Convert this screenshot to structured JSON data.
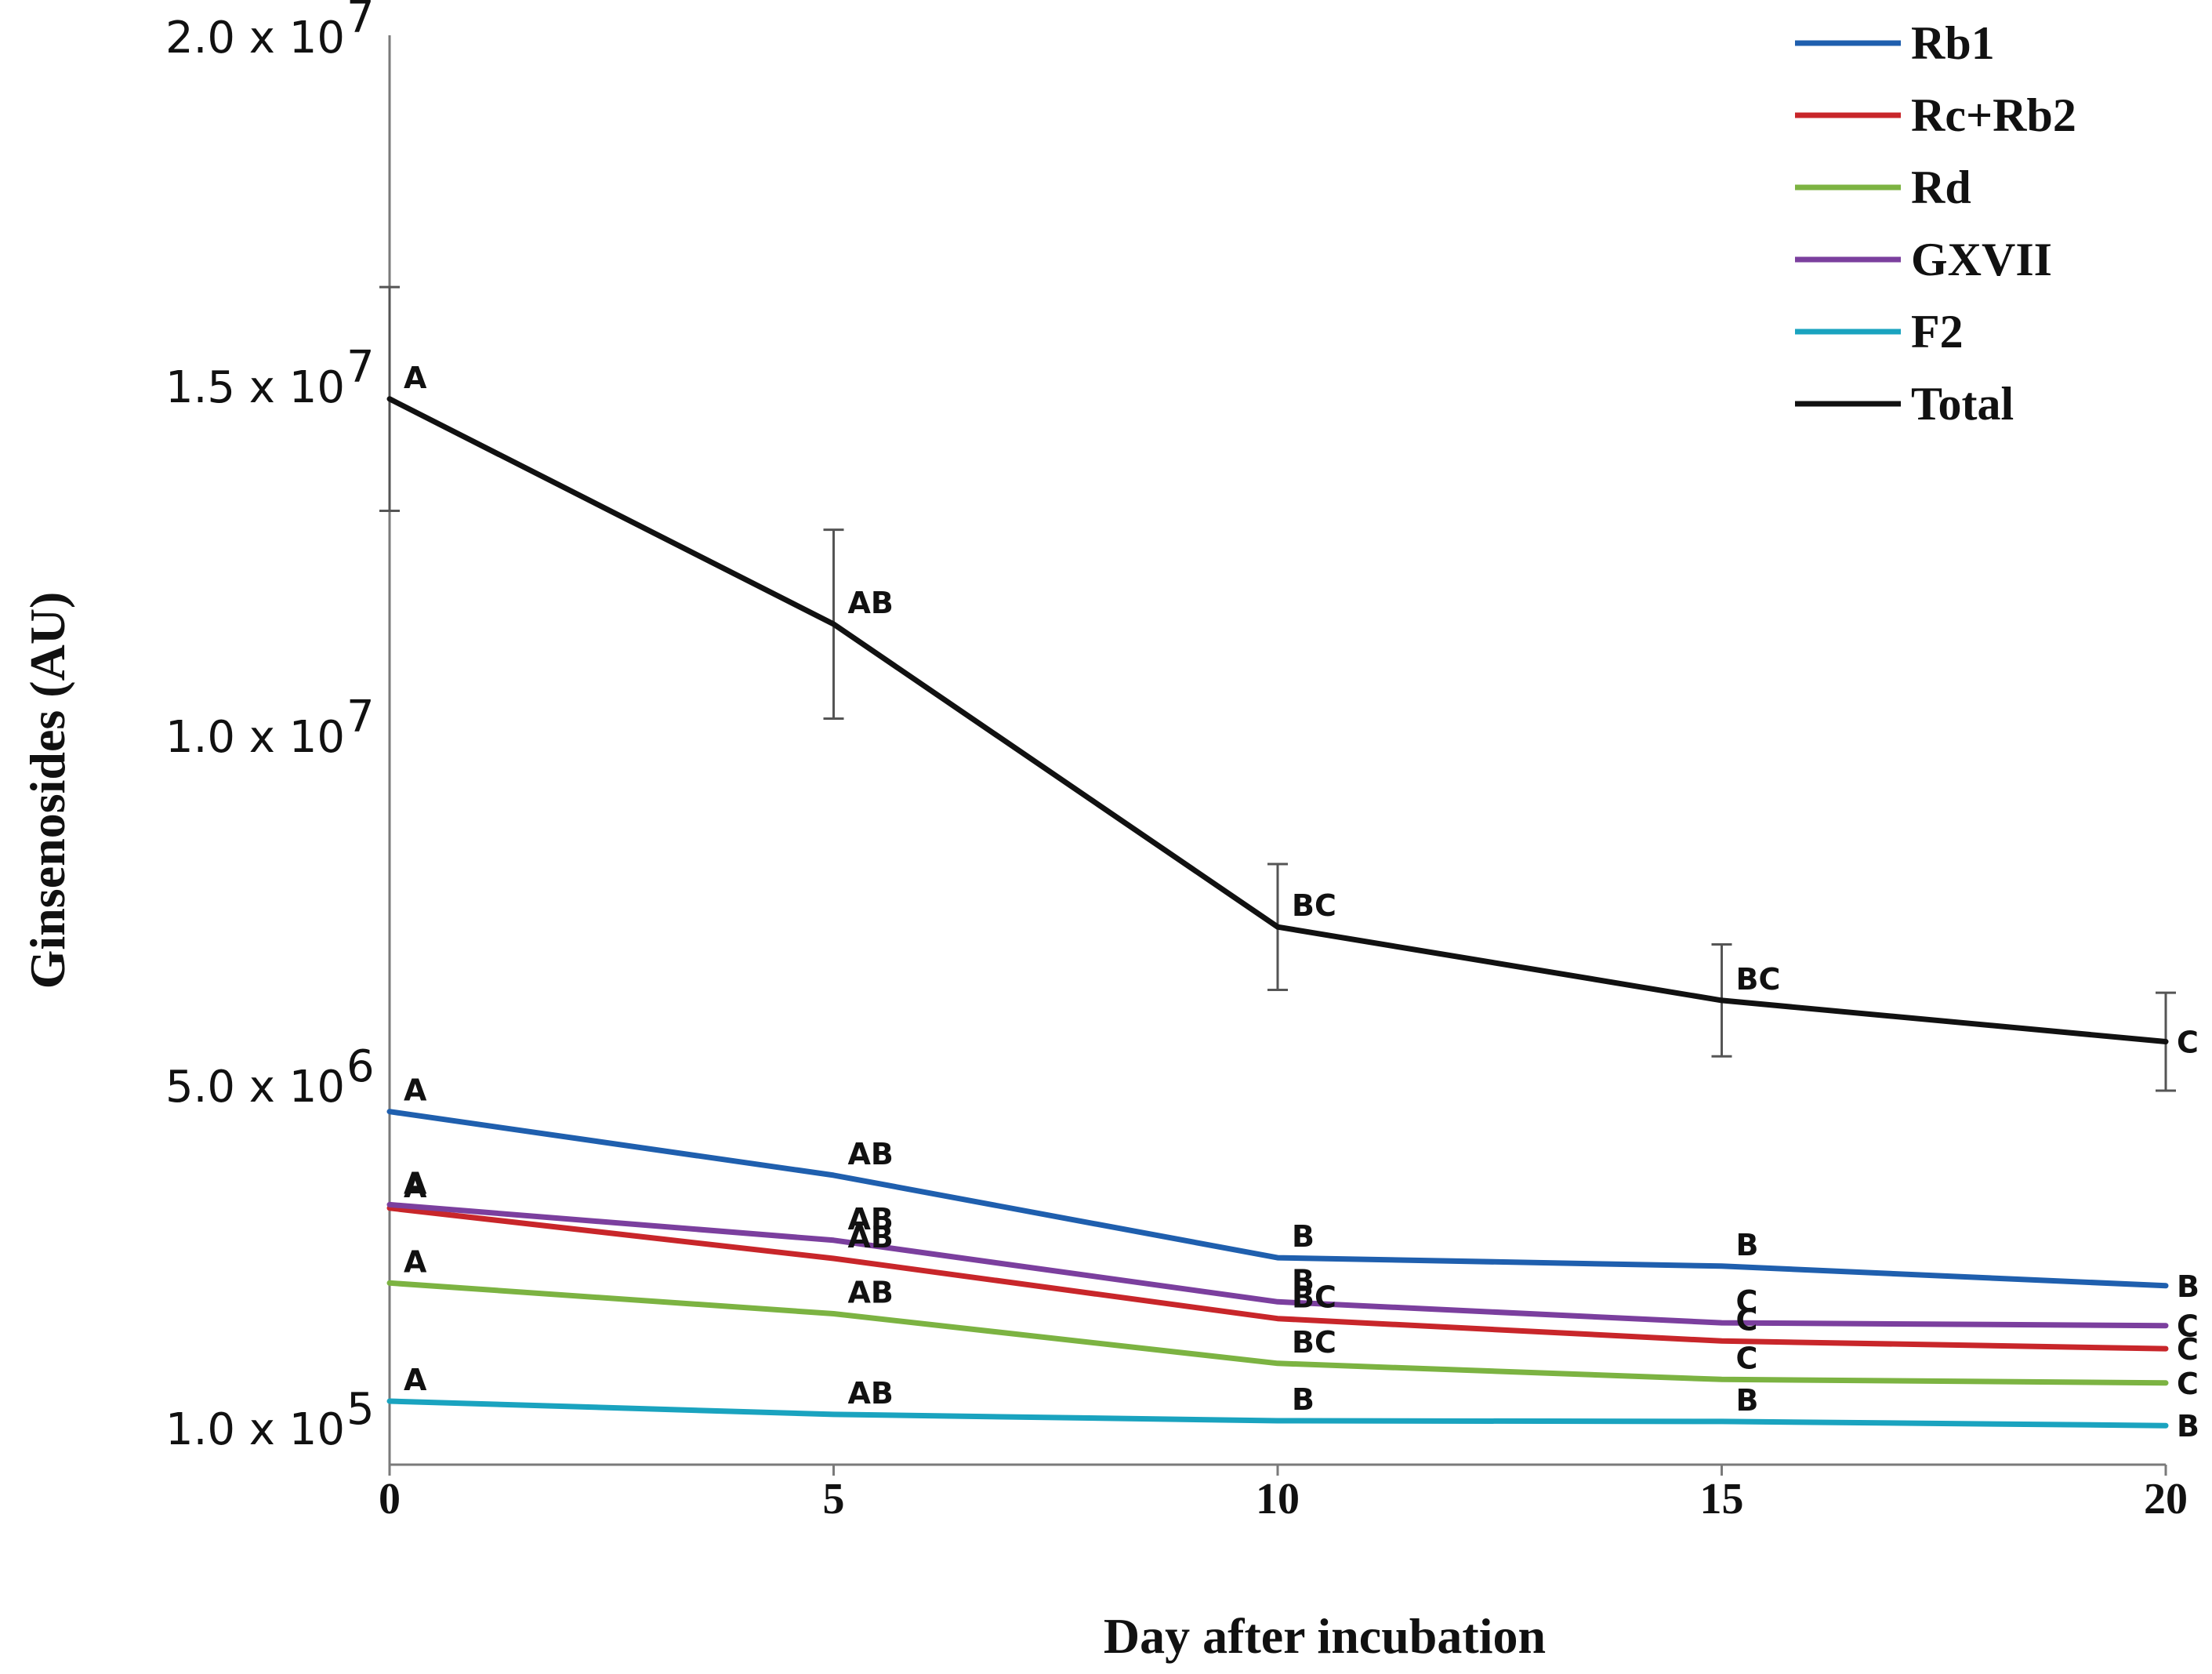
{
  "chart_data": {
    "type": "line",
    "title": "",
    "xlabel": "Day after incubation",
    "ylabel": "Ginsenosides (AU)",
    "x": [
      0,
      5,
      10,
      15,
      20
    ],
    "x_ticks": [
      "0",
      "5",
      "10",
      "15",
      "20"
    ],
    "y_ticks": [
      {
        "value": 100000,
        "mantissa": "1.0 x 10",
        "exp": "5"
      },
      {
        "value": 5000000,
        "mantissa": "5.0 x 10",
        "exp": "6"
      },
      {
        "value": 10000000,
        "mantissa": "1.0 x 10",
        "exp": "7"
      },
      {
        "value": 15000000,
        "mantissa": "1.5 x 10",
        "exp": "7"
      },
      {
        "value": 20000000,
        "mantissa": "2.0 x 10",
        "exp": "7"
      }
    ],
    "ylim": [
      100000,
      20000000
    ],
    "xlim": [
      0,
      20
    ],
    "legend_position": "top-right",
    "series": [
      {
        "name": "Rb1",
        "color": "#1f5fae",
        "values": [
          4610000,
          3700000,
          2520000,
          2400000,
          2120000
        ],
        "errors": [
          0,
          0,
          0,
          0,
          0
        ],
        "labels": [
          "A",
          "AB",
          "B",
          "B",
          "B"
        ]
      },
      {
        "name": "Rc+Rb2",
        "color": "#c8262a",
        "values": [
          3230000,
          2510000,
          1650000,
          1330000,
          1220000
        ],
        "errors": [
          0,
          0,
          0,
          0,
          0
        ],
        "labels": [
          "A",
          "AB",
          "BC",
          "C",
          "C"
        ]
      },
      {
        "name": "Rd",
        "color": "#7cb342",
        "values": [
          2160000,
          1720000,
          1010000,
          780000,
          730000
        ],
        "errors": [
          0,
          0,
          0,
          0,
          0
        ],
        "labels": [
          "A",
          "AB",
          "BC",
          "C",
          "C"
        ]
      },
      {
        "name": "GXVII",
        "color": "#7b3f9e",
        "values": [
          3280000,
          2770000,
          1890000,
          1590000,
          1550000
        ],
        "errors": [
          0,
          0,
          0,
          0,
          0
        ],
        "labels": [
          "A",
          "AB",
          "B",
          "C",
          "C"
        ]
      },
      {
        "name": "F2",
        "color": "#1aa3bf",
        "values": [
          470000,
          280000,
          190000,
          180000,
          120000
        ],
        "errors": [
          0,
          0,
          0,
          0,
          0
        ],
        "labels": [
          "A",
          "AB",
          "B",
          "B",
          "B"
        ]
      },
      {
        "name": "Total",
        "color": "#111111",
        "values": [
          14800000,
          11580000,
          7250000,
          6200000,
          5610000
        ],
        "errors": [
          1600000,
          1350000,
          900000,
          800000,
          700000
        ],
        "labels": [
          "A",
          "AB",
          "BC",
          "BC",
          "C"
        ]
      }
    ]
  }
}
